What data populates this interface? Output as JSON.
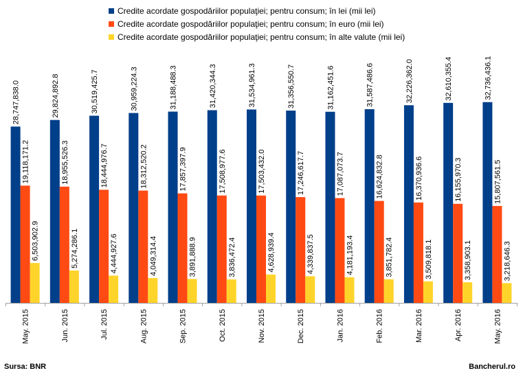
{
  "source": "Sursa: BNR",
  "brand": "Bancherul.ro",
  "chart_data": {
    "type": "bar",
    "categories": [
      "May. 2015",
      "Jun. 2015",
      "Jul. 2015",
      "Aug. 2015",
      "Sep. 2015",
      "Oct. 2015",
      "Nov. 2015",
      "Dec. 2015",
      "Jan. 2016",
      "Feb. 2016",
      "Mar. 2016",
      "Apr. 2016",
      "May. 2016"
    ],
    "series": [
      {
        "name": "Credite acordate gospodăriilor populaţiei; pentru consum; în lei (mii lei)",
        "color": "#003f8a",
        "values": [
          28747838.0,
          29824892.8,
          30519425.7,
          30959224.3,
          31188488.3,
          31420344.3,
          31534961.3,
          31356550.7,
          31162451.6,
          31587486.6,
          32226362.0,
          32610355.4,
          32736436.1
        ],
        "labels": [
          "28,747,838.0",
          "29,824,892.8",
          "30,519,425.7",
          "30,959,224.3",
          "31,188,488.3",
          "31,420,344.3",
          "31,534,961.3",
          "31,356,550.7",
          "31,162,451.6",
          "31,587,486.6",
          "32,226,362.0",
          "32,610,355.4",
          "32,736,436.1"
        ]
      },
      {
        "name": "Credite acordate gospodăriilor populaţiei; pentru consum; în euro (mii lei)",
        "color": "#ff4a14",
        "values": [
          19118171.2,
          18955526.3,
          18444976.7,
          18312520.2,
          17857397.9,
          17508977.6,
          17503432.0,
          17246617.7,
          17087073.7,
          16624832.8,
          16370936.6,
          16155970.3,
          15807561.5
        ],
        "labels": [
          "19,118,171.2",
          "18,955,526.3",
          "18,444,976.7",
          "18,312,520.2",
          "17,857,397.9",
          "17,508,977.6",
          "17,503,432.0",
          "17,246,617.7",
          "17,087,073.7",
          "16,624,832.8",
          "16,370,936.6",
          "16,155,970.3",
          "15,807,561.5"
        ]
      },
      {
        "name": "Credite acordate gospodăriilor populaţiei; pentru consum; în alte valute (mii lei)",
        "color": "#ffd42a",
        "values": [
          6503902.9,
          5274286.1,
          4444927.6,
          4049314.4,
          3891888.9,
          3836472.4,
          4628939.4,
          4339837.5,
          4181193.4,
          3851782.4,
          3509818.1,
          3358903.1,
          3218646.3
        ],
        "labels": [
          "6,503,902.9",
          "5,274,286.1",
          "4,444,927.6",
          "4,049,314.4",
          "3,891,888.9",
          "3,836,472.4",
          "4,628,939.4",
          "4,339,837.5",
          "4,181,193.4",
          "3,851,782.4",
          "3,509,818.1",
          "3,358,903.1",
          "3,218,646.3"
        ]
      }
    ],
    "ylim": [
      0,
      35500000
    ],
    "grid": false,
    "legend": "top"
  }
}
